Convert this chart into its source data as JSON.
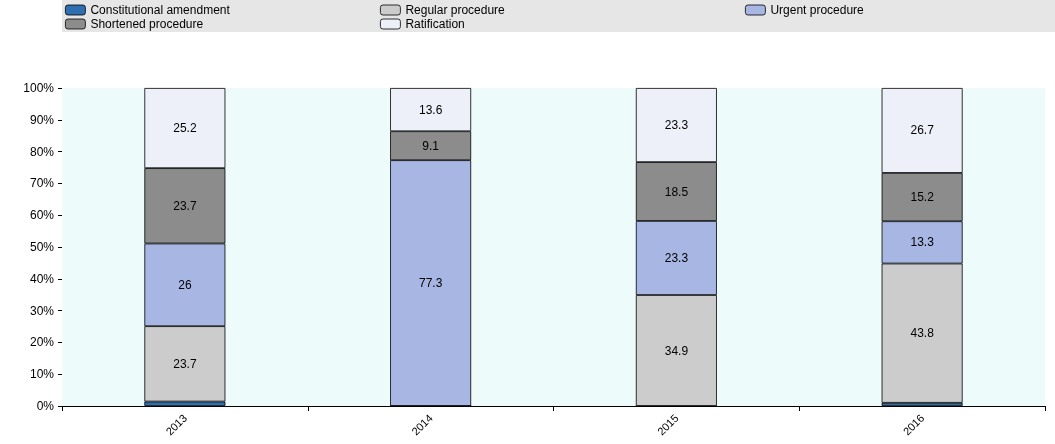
{
  "chart_data": {
    "type": "bar",
    "stacked": true,
    "categories": [
      "2013",
      "2014",
      "2015",
      "2016"
    ],
    "series": [
      {
        "name": "Constitutional amendment",
        "color": "#2e6fb0",
        "values": [
          1.4,
          0,
          0,
          1.0
        ],
        "value_labels": [
          null,
          null,
          null,
          null
        ]
      },
      {
        "name": "Regular procedure",
        "color": "#cccccc",
        "values": [
          23.7,
          0,
          34.9,
          43.8
        ],
        "value_labels": [
          "23.7",
          null,
          "34.9",
          "43.8"
        ]
      },
      {
        "name": "Urgent procedure",
        "color": "#a7b6e2",
        "values": [
          26,
          77.3,
          23.3,
          13.3
        ],
        "value_labels": [
          "26",
          "77.3",
          "23.3",
          "13.3"
        ]
      },
      {
        "name": "Shortened procedure",
        "color": "#8c8c8c",
        "values": [
          23.7,
          9.1,
          18.5,
          15.2
        ],
        "value_labels": [
          "23.7",
          "9.1",
          "18.5",
          "15.2"
        ]
      },
      {
        "name": "Ratification",
        "color": "#eef0f9",
        "values": [
          25.2,
          13.6,
          23.3,
          26.7
        ],
        "value_labels": [
          "25.2",
          "13.6",
          "23.3",
          "26.7"
        ]
      }
    ],
    "ylim": [
      0,
      100
    ],
    "yticks": [
      {
        "value": 0,
        "label": "0%"
      },
      {
        "value": 10,
        "label": "10%"
      },
      {
        "value": 20,
        "label": "20%"
      },
      {
        "value": 30,
        "label": "30%"
      },
      {
        "value": 40,
        "label": "40%"
      },
      {
        "value": 50,
        "label": "50%"
      },
      {
        "value": 60,
        "label": "60%"
      },
      {
        "value": 70,
        "label": "70%"
      },
      {
        "value": 80,
        "label": "80%"
      },
      {
        "value": 90,
        "label": "90%"
      },
      {
        "value": 100,
        "label": "100%"
      }
    ],
    "grid": false,
    "legend": "top"
  }
}
